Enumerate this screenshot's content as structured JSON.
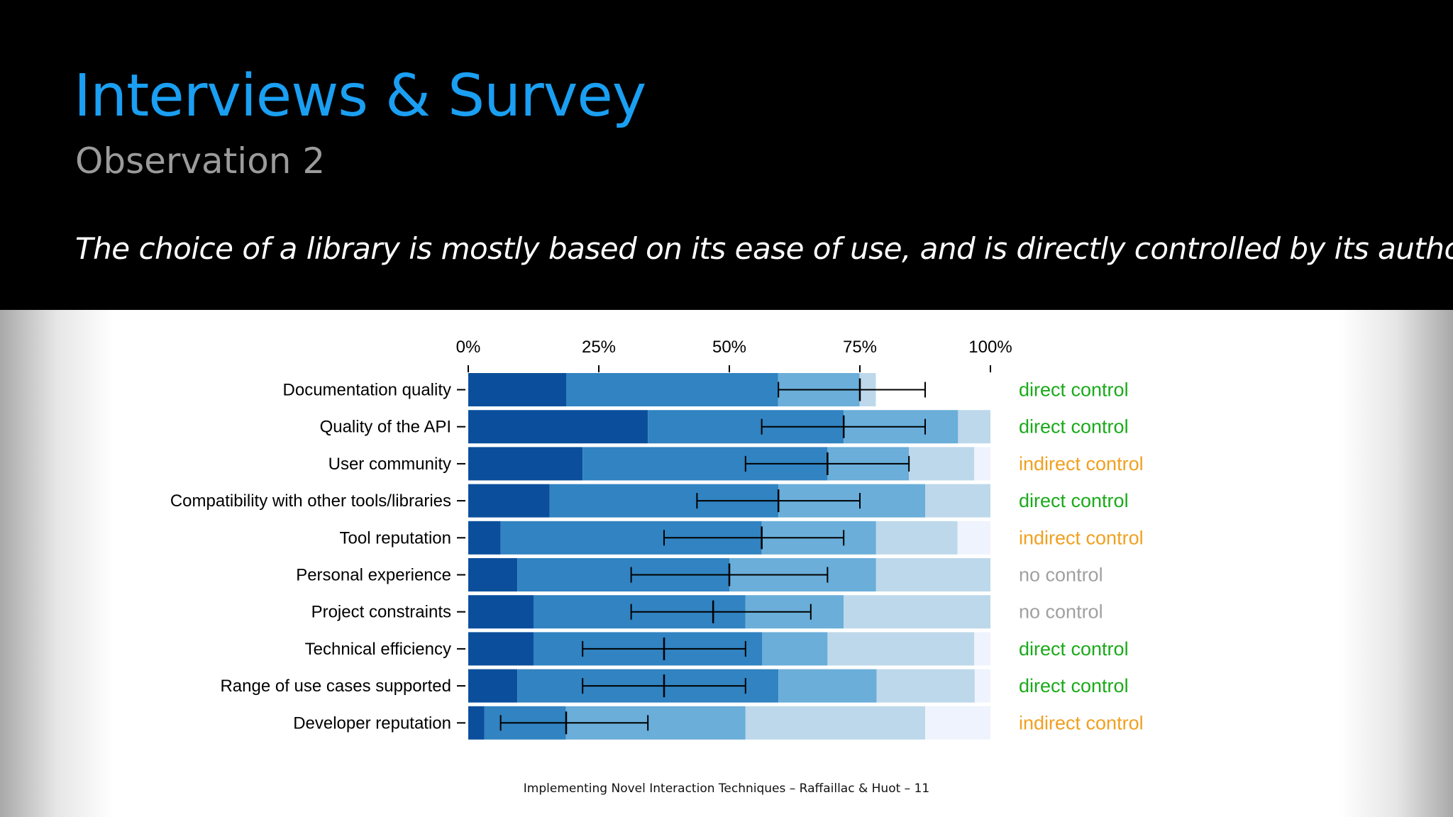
{
  "slide": {
    "title": "Interviews & Survey",
    "subtitle": "Observation 2",
    "statement": "The choice of a library is mostly based on its ease of use, and is directly controlled by its authors",
    "footer": "Implementing Novel Interaction Techniques – Raffaillac & Huot – 11"
  },
  "colors": {
    "title": "#1a9ff2",
    "subtitle": "#9b9b9b",
    "segments": [
      "#0b4f9c",
      "#3183c1",
      "#6aaed9",
      "#bdd8ea",
      "#eef3fd"
    ],
    "direct control": "#1aaa1a",
    "indirect control": "#f0a020",
    "no control": "#a0a0a0"
  },
  "chart_data": {
    "type": "bar",
    "orientation": "horizontal",
    "stacked": true,
    "xlim": [
      0,
      100
    ],
    "x_ticks": [
      "0%",
      "25%",
      "50%",
      "75%",
      "100%"
    ],
    "x_tick_values": [
      0,
      25,
      50,
      75,
      100
    ],
    "categories": [
      "Documentation quality",
      "Quality of the API",
      "User community",
      "Compatibility with other tools/libraries",
      "Tool reputation",
      "Personal experience",
      "Project constraints",
      "Technical efficiency",
      "Range of use cases supported",
      "Developer reputation"
    ],
    "segments": [
      [
        18.75,
        40.6,
        15.6,
        3.1,
        0
      ],
      [
        34.4,
        37.5,
        21.9,
        6.2,
        0
      ],
      [
        21.9,
        46.9,
        15.6,
        12.5,
        3.1
      ],
      [
        15.6,
        43.8,
        28.1,
        12.5,
        0
      ],
      [
        6.2,
        50.0,
        21.9,
        15.6,
        6.3
      ],
      [
        9.4,
        40.6,
        28.1,
        21.9,
        0
      ],
      [
        12.5,
        40.6,
        18.8,
        28.1,
        0
      ],
      [
        12.5,
        43.8,
        12.5,
        28.1,
        3.1
      ],
      [
        9.4,
        50.0,
        18.8,
        18.8,
        3.0
      ],
      [
        3.1,
        15.6,
        34.4,
        34.4,
        12.5
      ]
    ],
    "medians": [
      75.0,
      71.9,
      68.8,
      59.4,
      56.2,
      50.0,
      46.9,
      37.5,
      37.5,
      18.75
    ],
    "error_bars": [
      [
        59.4,
        87.5
      ],
      [
        56.2,
        87.5
      ],
      [
        53.1,
        84.4
      ],
      [
        43.8,
        75.0
      ],
      [
        37.5,
        71.9
      ],
      [
        31.2,
        68.8
      ],
      [
        31.2,
        65.6
      ],
      [
        21.9,
        53.1
      ],
      [
        21.9,
        53.1
      ],
      [
        6.2,
        34.4
      ]
    ],
    "control": [
      "direct control",
      "direct control",
      "indirect control",
      "direct control",
      "indirect control",
      "no control",
      "no control",
      "direct control",
      "direct control",
      "indirect control"
    ]
  }
}
